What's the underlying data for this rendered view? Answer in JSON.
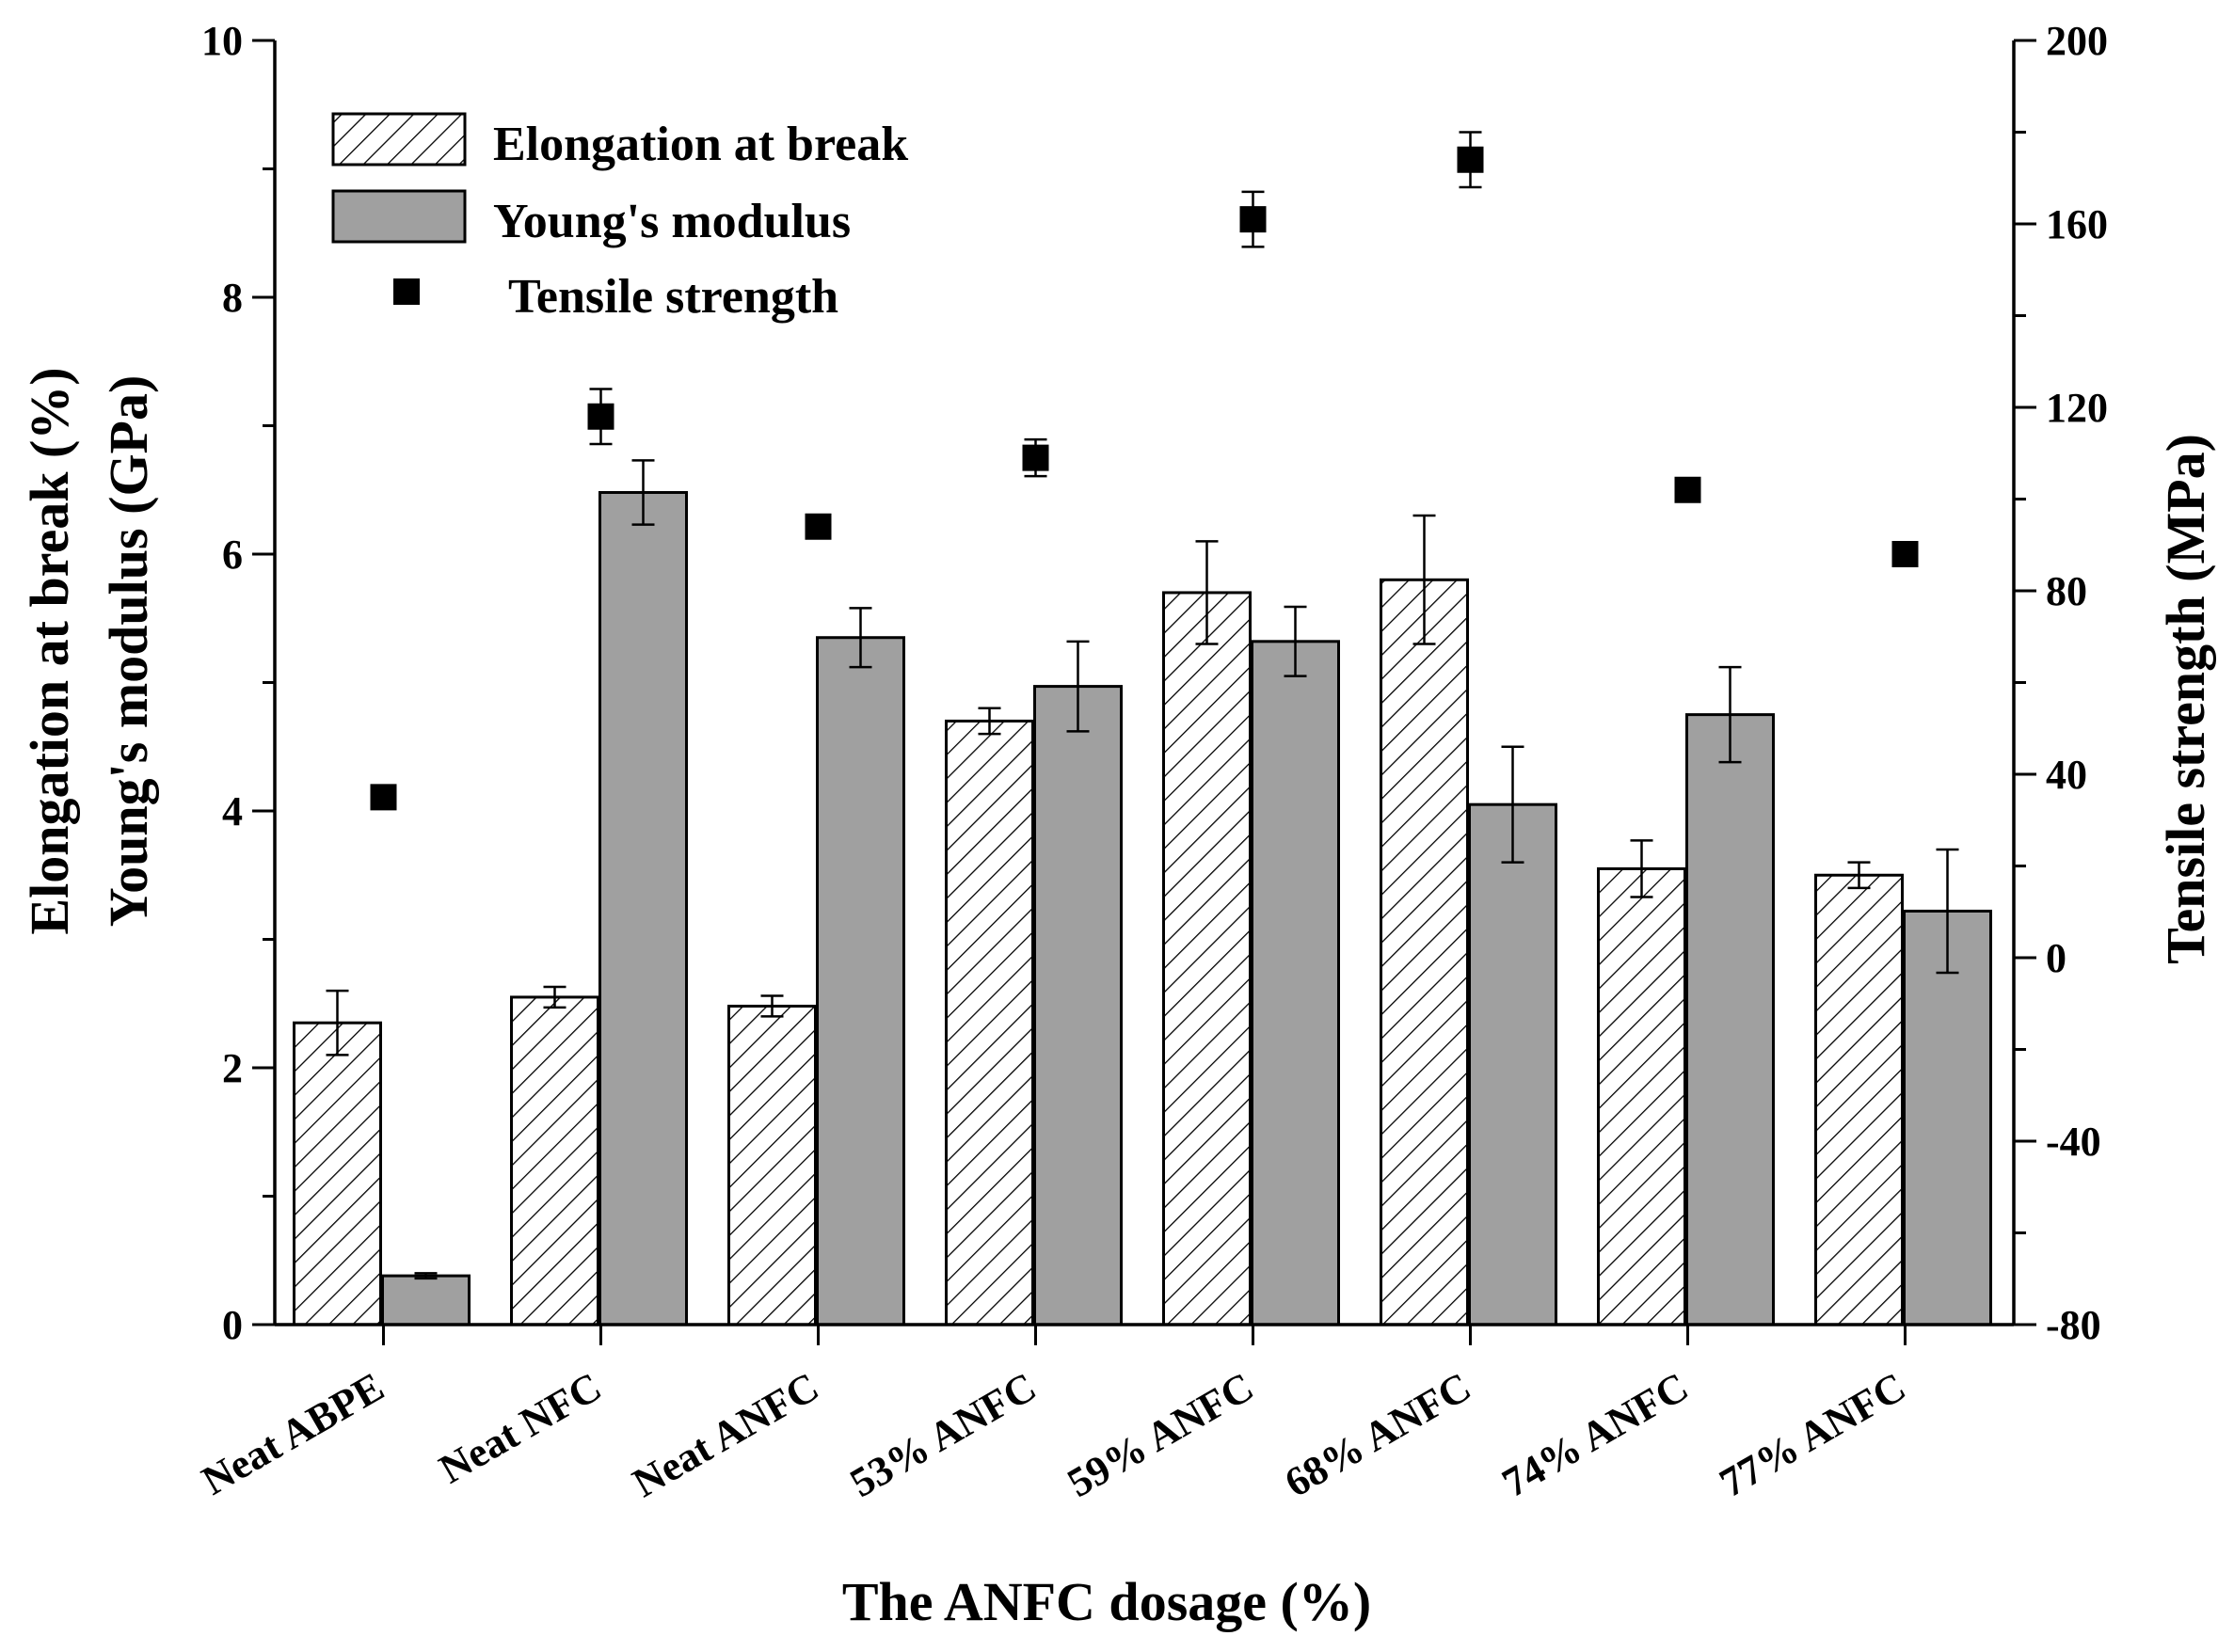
{
  "chart_data": {
    "type": "bar",
    "xlabel": "The ANFC dosage (%)",
    "ylabel_left_line1": "Elongation at break (%)",
    "ylabel_left_line2": "Young's modulus (GPa)",
    "ylabel_right": "Tensile strength (MPa)",
    "categories": [
      "Neat ABPE",
      "Neat NFC",
      "Neat ANFC",
      "53% ANFC",
      "59% ANFC",
      "68% ANFC",
      "74% ANFC",
      "77% ANFC"
    ],
    "ylim_left": [
      0,
      10
    ],
    "yticks_left": [
      0,
      2,
      4,
      6,
      8,
      10
    ],
    "ylim_right": [
      -80,
      200
    ],
    "yticks_right": [
      -80,
      -40,
      0,
      40,
      80,
      120,
      160,
      200
    ],
    "series": [
      {
        "name": "Elongation at break",
        "kind": "bar",
        "axis": "left",
        "fill": "hatched",
        "values": [
          2.35,
          2.55,
          2.48,
          4.7,
          5.7,
          5.8,
          3.55,
          3.5
        ],
        "errors": [
          0.25,
          0.08,
          0.08,
          0.1,
          0.4,
          0.5,
          0.22,
          0.1
        ]
      },
      {
        "name": "Young's modulus",
        "kind": "bar",
        "axis": "left",
        "fill": "gray",
        "values": [
          0.38,
          6.48,
          5.35,
          4.97,
          5.32,
          4.05,
          4.75,
          3.22
        ],
        "errors": [
          0.02,
          0.25,
          0.23,
          0.35,
          0.27,
          0.45,
          0.37,
          0.48
        ]
      },
      {
        "name": "Tensile strength",
        "kind": "scatter",
        "axis": "right",
        "values": [
          35,
          118,
          94,
          109,
          161,
          174,
          102,
          88
        ],
        "errors": [
          0,
          6,
          0,
          4,
          6,
          6,
          2,
          2
        ]
      }
    ],
    "legend_position": "top-left",
    "colors": {
      "bar_gray": "#a0a0a0",
      "hatch": "#000000",
      "marker": "#000000"
    }
  }
}
